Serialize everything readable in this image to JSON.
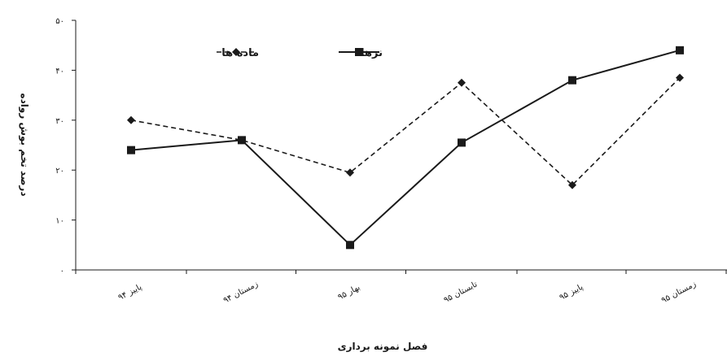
{
  "chart_data": {
    "type": "line",
    "title": "",
    "xlabel": "فصل نمونه برداری",
    "ylabel": "درصد تخم بوش رواده",
    "categories": [
      "پاییز ۹۴",
      "زمستان ۹۴",
      "بهار ۹۵",
      "تابستان ۹۵",
      "پاییز ۹۵",
      "زمستان ۹۵"
    ],
    "ylim": [
      0,
      50
    ],
    "yticks": [
      0,
      10,
      20,
      30,
      40,
      50
    ],
    "ytick_labels": [
      "۰",
      "۱۰",
      "۲۰",
      "۳۰",
      "۴۰",
      "۵۰"
    ],
    "grid": false,
    "legend_position": "top-center",
    "series": [
      {
        "name": "ماده ها",
        "values": [
          30,
          26,
          19.5,
          37.5,
          17,
          38.5
        ],
        "line_style": "dashed",
        "marker": "diamond",
        "color": "#1a1a1a"
      },
      {
        "name": "نرها",
        "values": [
          24,
          26,
          5,
          25.5,
          38,
          44
        ],
        "line_style": "solid",
        "marker": "square",
        "color": "#1a1a1a"
      }
    ]
  }
}
